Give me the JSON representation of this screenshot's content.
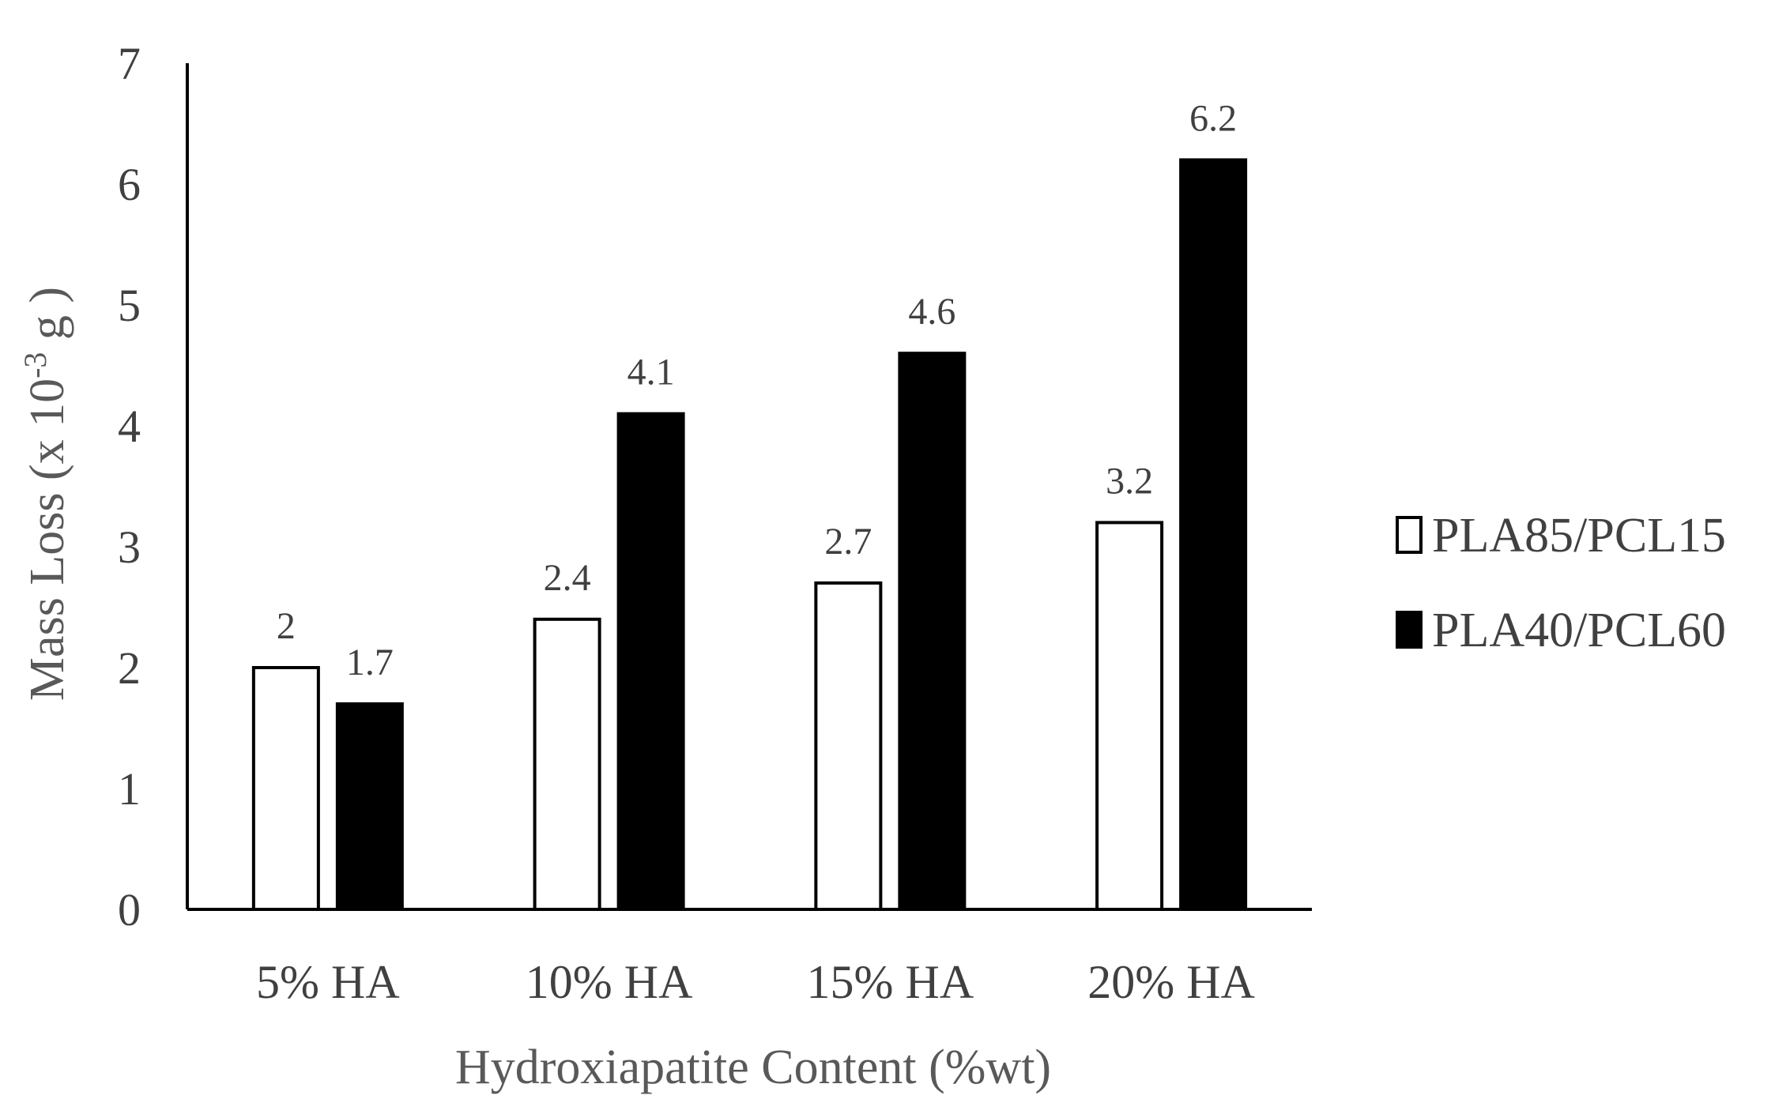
{
  "chart_data": {
    "type": "bar",
    "categories": [
      "5% HA",
      "10% HA",
      "15% HA",
      "20% HA"
    ],
    "series": [
      {
        "name": "PLA85/PCL15",
        "values": [
          2,
          2.4,
          2.7,
          3.2
        ],
        "fill": "#ffffff",
        "stroke": "#000000"
      },
      {
        "name": "PLA40/PCL60",
        "values": [
          1.7,
          4.1,
          4.6,
          6.2
        ],
        "fill": "#000000",
        "stroke": "#000000"
      }
    ],
    "title": "",
    "xlabel": "Hydroxiapatite Content (%wt)",
    "ylabel": {
      "prefix": "Mass Loss (x 10",
      "superscript": "-3",
      "suffix": " g )"
    },
    "ylim": [
      0,
      7
    ],
    "yticks": [
      0,
      1,
      2,
      3,
      4,
      5,
      6,
      7
    ],
    "grid": false,
    "legend_position": "right"
  }
}
